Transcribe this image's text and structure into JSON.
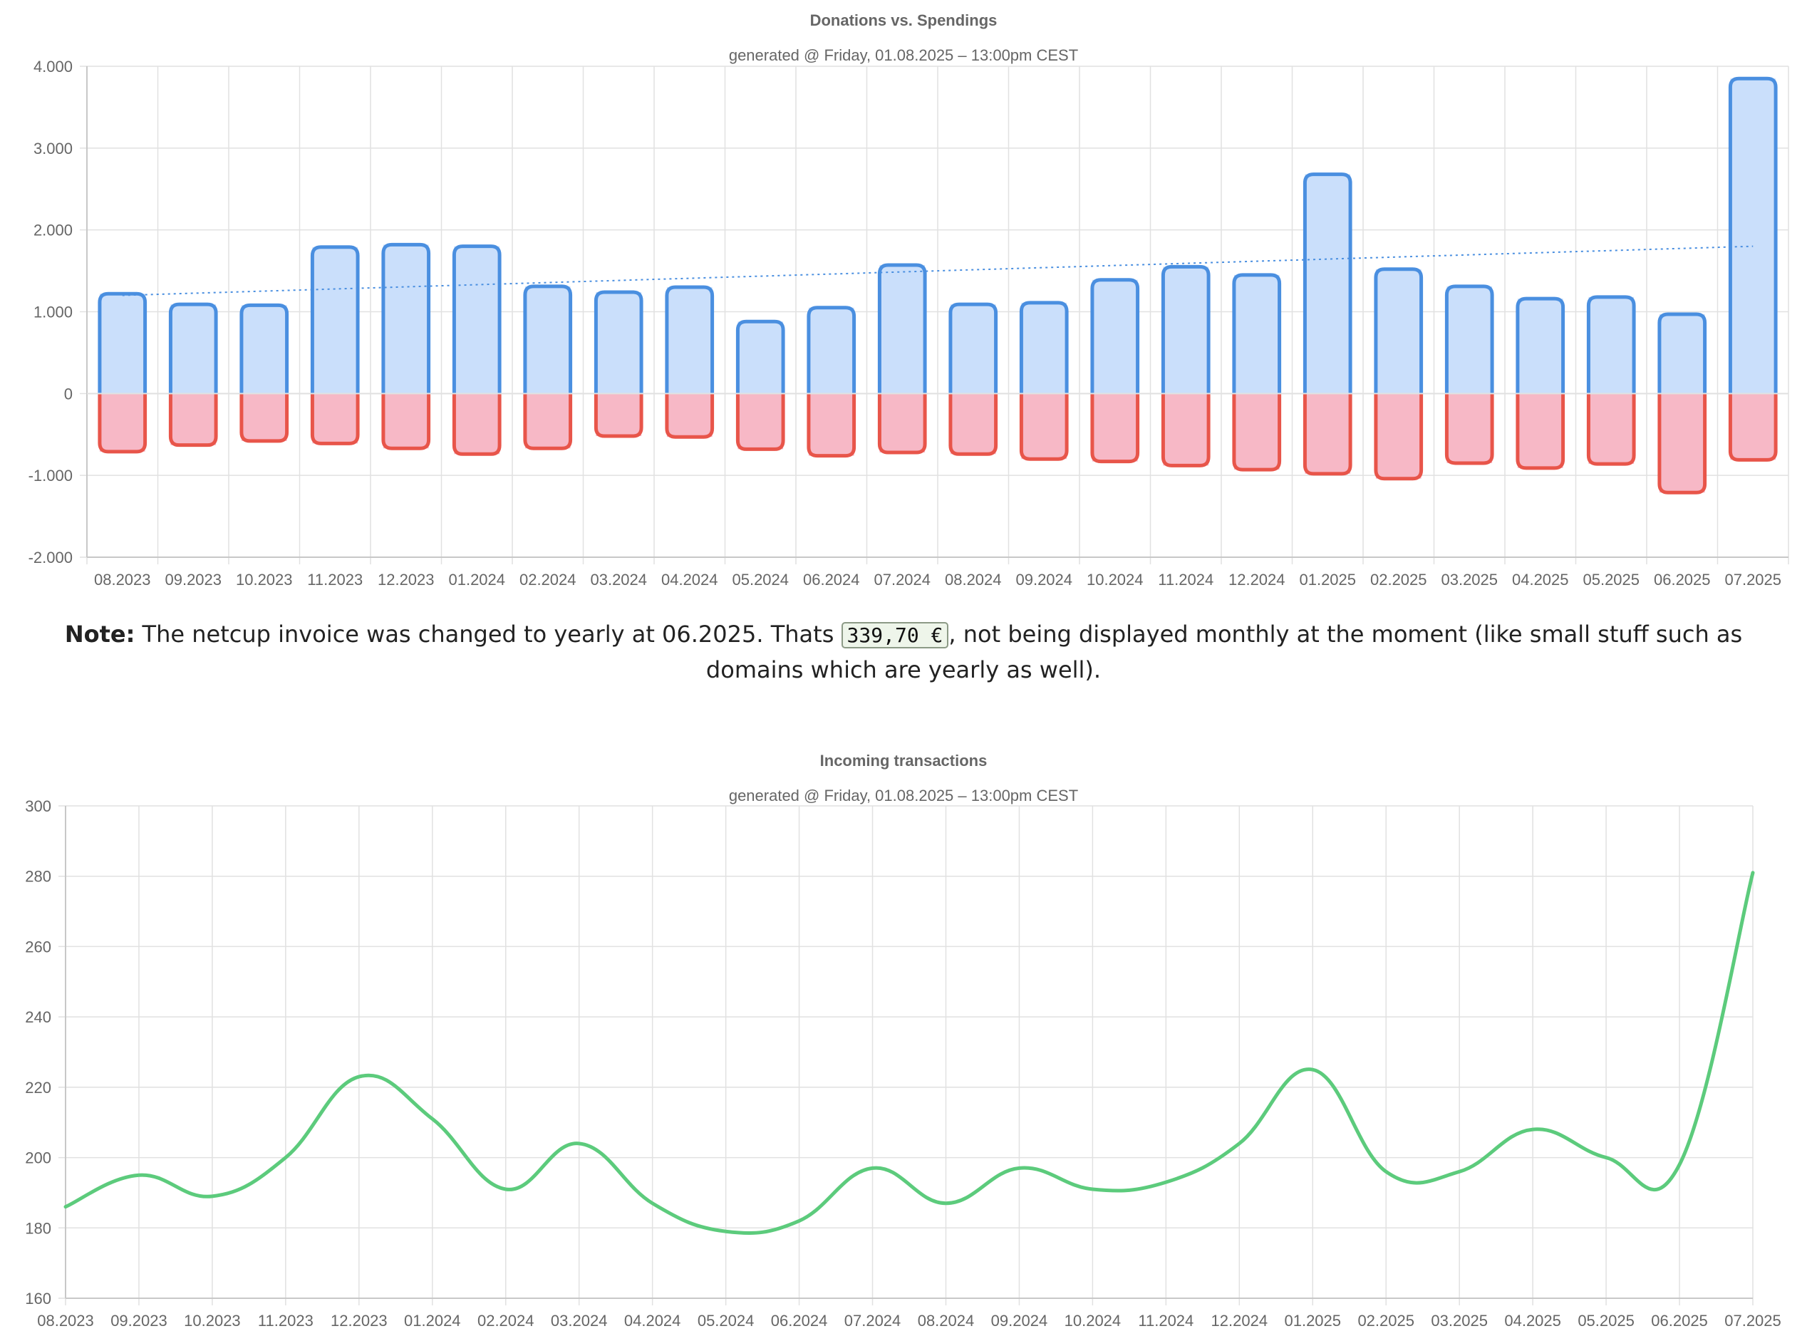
{
  "note": {
    "label": "Note:",
    "text_before": " The netcup invoice was changed to yearly at 06.2025. Thats ",
    "amount": "339,70 €",
    "text_after": ", not being displayed monthly at the moment (like small stuff such as domains which are yearly as well)."
  },
  "chart_data": [
    {
      "type": "bar",
      "title": "Donations vs. Spendings",
      "subtitle": "generated @ Friday, 01.08.2025 – 13:00pm CEST",
      "categories": [
        "08.2023",
        "09.2023",
        "10.2023",
        "11.2023",
        "12.2023",
        "01.2024",
        "02.2024",
        "03.2024",
        "04.2024",
        "05.2024",
        "06.2024",
        "07.2024",
        "08.2024",
        "09.2024",
        "10.2024",
        "11.2024",
        "12.2024",
        "01.2025",
        "02.2025",
        "03.2025",
        "04.2025",
        "05.2025",
        "06.2025",
        "07.2025"
      ],
      "series": [
        {
          "values": [
            1220,
            1090,
            1080,
            1790,
            1820,
            1800,
            1310,
            1240,
            1300,
            880,
            1050,
            1570,
            1090,
            1110,
            1390,
            1550,
            1450,
            2680,
            1520,
            1310,
            1160,
            1180,
            970,
            3850
          ],
          "stroke": "#4a8fe0",
          "fill": "#cadffb"
        },
        {
          "values": [
            -710,
            -630,
            -580,
            -610,
            -670,
            -740,
            -670,
            -520,
            -530,
            -680,
            -760,
            -720,
            -740,
            -800,
            -830,
            -880,
            -930,
            -980,
            -1040,
            -850,
            -910,
            -860,
            -1210,
            -810
          ],
          "stroke": "#e8554a",
          "fill": "#f7b8c6"
        }
      ],
      "trendline": {
        "from": 1200,
        "to": 1800,
        "color": "#4a8fe0",
        "dotted": true
      },
      "ylim": [
        -2000,
        4000
      ],
      "yticks": [
        {
          "value": 4000,
          "label": "4.000"
        },
        {
          "value": 3000,
          "label": "3.000"
        },
        {
          "value": 2000,
          "label": "2.000"
        },
        {
          "value": 1000,
          "label": "1.000"
        },
        {
          "value": 0,
          "label": "0"
        },
        {
          "value": -1000,
          "label": "-1.000"
        },
        {
          "value": -2000,
          "label": "-2.000"
        }
      ],
      "grid": true,
      "xlabel": "",
      "ylabel": ""
    },
    {
      "type": "line",
      "title": "Incoming transactions",
      "subtitle": "generated @ Friday, 01.08.2025 – 13:00pm CEST",
      "categories": [
        "08.2023",
        "09.2023",
        "10.2023",
        "11.2023",
        "12.2023",
        "01.2024",
        "02.2024",
        "03.2024",
        "04.2024",
        "05.2024",
        "06.2024",
        "07.2024",
        "08.2024",
        "09.2024",
        "10.2024",
        "11.2024",
        "12.2024",
        "01.2025",
        "02.2025",
        "03.2025",
        "04.2025",
        "05.2025",
        "06.2025",
        "07.2025"
      ],
      "series": [
        {
          "values": [
            186,
            195,
            189,
            200,
            223,
            211,
            191,
            204,
            187,
            179,
            182,
            197,
            187,
            197,
            191,
            193,
            204,
            225,
            196,
            196,
            208,
            200,
            198,
            281
          ],
          "color": "#5ccb7c"
        }
      ],
      "ylim": [
        160,
        300
      ],
      "yticks": [
        {
          "value": 300,
          "label": "300"
        },
        {
          "value": 280,
          "label": "280"
        },
        {
          "value": 260,
          "label": "260"
        },
        {
          "value": 240,
          "label": "240"
        },
        {
          "value": 220,
          "label": "220"
        },
        {
          "value": 200,
          "label": "200"
        },
        {
          "value": 180,
          "label": "180"
        },
        {
          "value": 160,
          "label": "160"
        }
      ],
      "grid": true,
      "xlabel": "",
      "ylabel": ""
    }
  ]
}
